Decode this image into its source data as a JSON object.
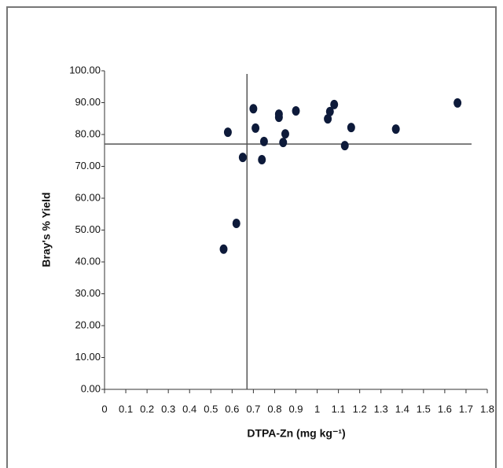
{
  "chart_data": {
    "type": "scatter",
    "x_label": "DTPA-Zn (mg kg⁻¹)",
    "y_label": "Bray's % Yield",
    "color": "#0d1a3a",
    "x": [
      0.56,
      0.62,
      0.58,
      0.65,
      0.7,
      0.71,
      0.75,
      0.74,
      0.82,
      0.82,
      0.85,
      0.84,
      0.9,
      1.05,
      1.06,
      1.08,
      1.13,
      1.16,
      1.37,
      1.66
    ],
    "values": [
      44.0,
      52.1,
      80.7,
      72.8,
      88.1,
      82.0,
      77.8,
      72.1,
      86.4,
      85.4,
      80.2,
      77.5,
      87.4,
      84.9,
      87.2,
      89.4,
      76.5,
      82.2,
      81.7,
      89.9
    ],
    "xlim": [
      0,
      1.8
    ],
    "xticks": [
      0,
      0.1,
      0.2,
      0.3,
      0.4,
      0.5,
      0.6,
      0.7,
      0.8,
      0.9,
      1,
      1.1,
      1.2,
      1.3,
      1.4,
      1.5,
      1.6,
      1.7,
      1.8
    ],
    "ylim": [
      0,
      100
    ],
    "yticks": [
      {
        "value": 0,
        "label": "0.00"
      },
      {
        "value": 10,
        "label": "10.00"
      },
      {
        "value": 20,
        "label": "20.00"
      },
      {
        "value": 30,
        "label": "30.00"
      },
      {
        "value": 40,
        "label": "40.00"
      },
      {
        "value": 50,
        "label": "50.00"
      },
      {
        "value": 60,
        "label": "60.00"
      },
      {
        "value": 70,
        "label": "70.00"
      },
      {
        "value": 80,
        "label": "80.00"
      },
      {
        "value": 90,
        "label": "90.00"
      },
      {
        "value": 100,
        "label": "100.00"
      }
    ],
    "vlines": [
      0.67
    ],
    "hlines": [
      77
    ]
  }
}
